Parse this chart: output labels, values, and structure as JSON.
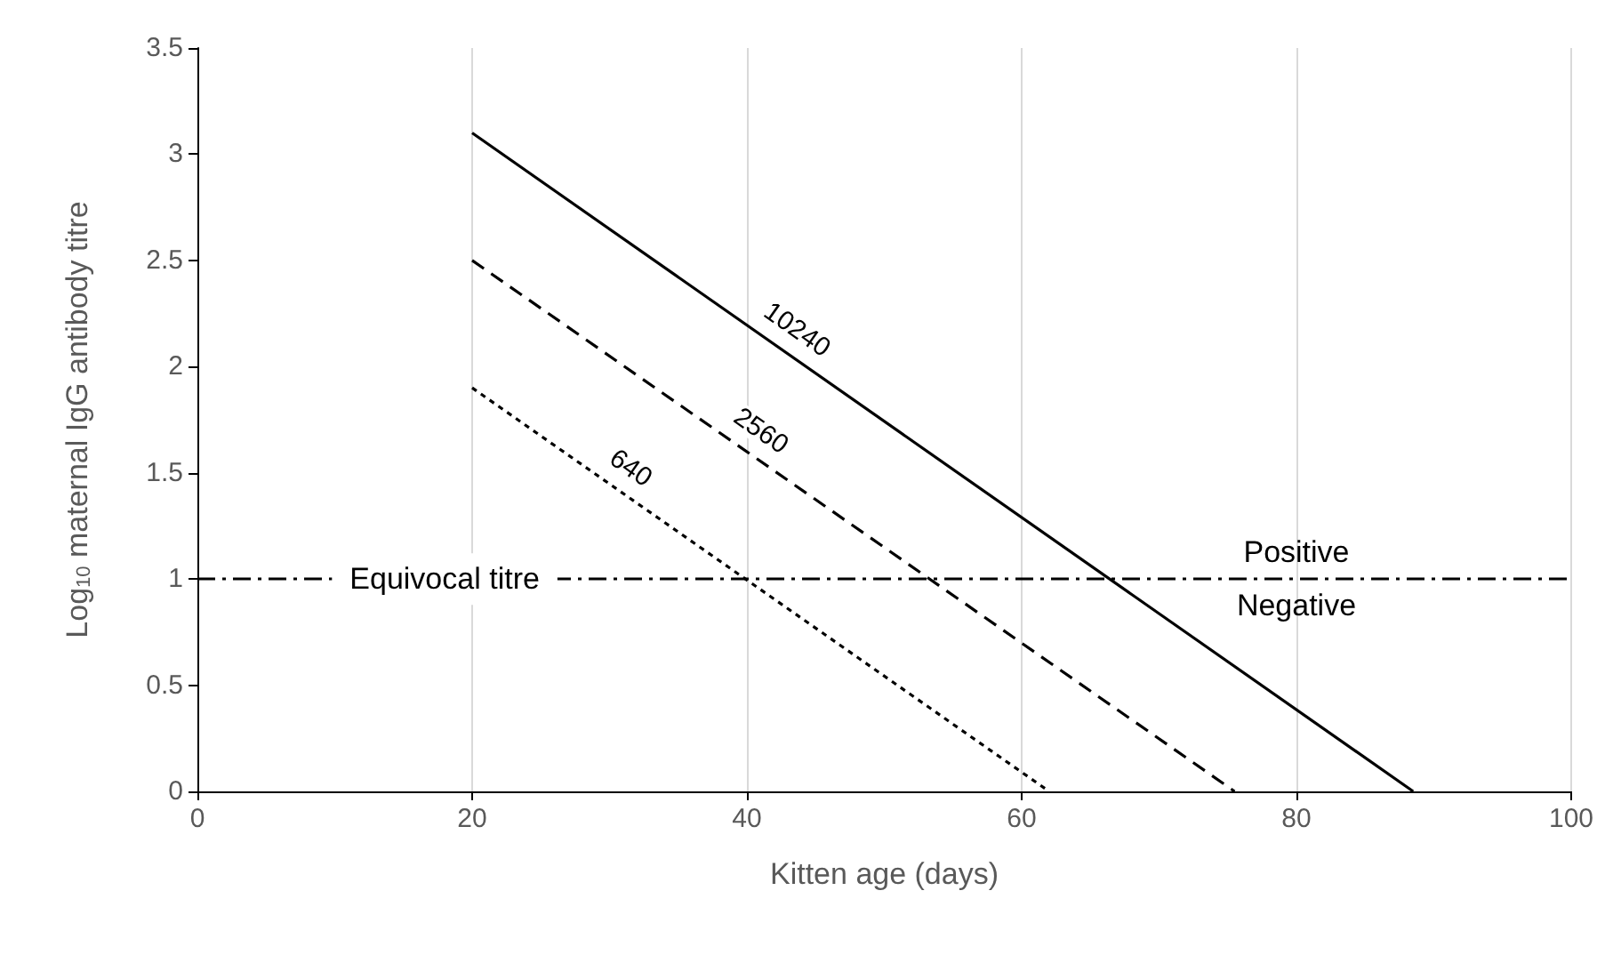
{
  "chart_data": {
    "type": "line",
    "xlabel": "Kitten age (days)",
    "ylabel": "Log$_{10}$ maternal IgG antibody titre",
    "xlim": [
      0,
      100
    ],
    "xticks": [
      0,
      20,
      40,
      60,
      80,
      100
    ],
    "ylim": [
      0,
      3.5
    ],
    "yticks": [
      0,
      0.5,
      1,
      1.5,
      2,
      2.5,
      3,
      3.5
    ],
    "grid": "x",
    "marker": "none",
    "series": [
      {
        "name": "10240",
        "color": "#000000",
        "line_style": "solid",
        "x": [
          20,
          88.5
        ],
        "values": [
          3.1,
          0
        ]
      },
      {
        "name": "2560",
        "color": "#000000",
        "line_style": "dashed",
        "x": [
          20,
          75.5
        ],
        "values": [
          2.5,
          0
        ]
      },
      {
        "name": "640",
        "color": "#000000",
        "line_style": "dotted",
        "x": [
          20,
          62
        ],
        "values": [
          1.9,
          0
        ]
      }
    ],
    "ref_lines": [
      {
        "axis": "y",
        "value": 1,
        "label": "Equivocal titre",
        "color": "#000000",
        "line_style": "dashdot"
      }
    ],
    "annotations": [
      "Positive",
      "Negative"
    ]
  }
}
